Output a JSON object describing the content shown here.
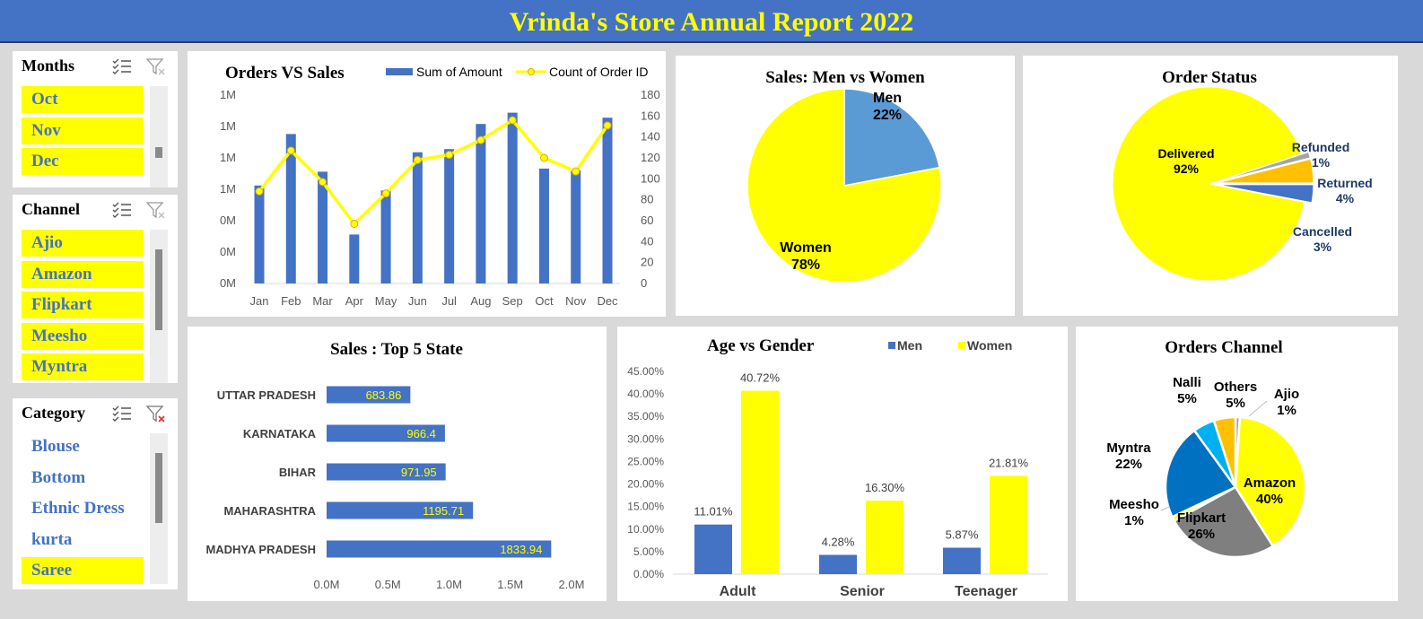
{
  "title": "Vrinda's Store Annual Report 2022",
  "slicers": {
    "months": {
      "header": "Months",
      "items": [
        {
          "label": "Oct",
          "selected": true
        },
        {
          "label": "Nov",
          "selected": true
        },
        {
          "label": "Dec",
          "selected": true
        }
      ]
    },
    "channel": {
      "header": "Channel",
      "items": [
        {
          "label": "Ajio",
          "selected": true
        },
        {
          "label": "Amazon",
          "selected": true
        },
        {
          "label": "Flipkart",
          "selected": true
        },
        {
          "label": "Meesho",
          "selected": true
        },
        {
          "label": "Myntra",
          "selected": true
        }
      ]
    },
    "category": {
      "header": "Category",
      "items": [
        {
          "label": "Blouse",
          "selected": false
        },
        {
          "label": "Bottom",
          "selected": false
        },
        {
          "label": "Ethnic Dress",
          "selected": false
        },
        {
          "label": "kurta",
          "selected": false
        },
        {
          "label": "Saree",
          "selected": true
        }
      ]
    }
  },
  "colors": {
    "banner": "#4472c4",
    "yellow": "#ffff00",
    "blue": "#4472c4",
    "lightblue": "#5b9bd5",
    "darkblue": "#0070c0",
    "sky": "#00b0f0",
    "orange": "#ffc000",
    "grey": "#7f7f7f",
    "lightgrey": "#a5a5a5"
  },
  "chart_data": [
    {
      "id": "orders_vs_sales",
      "type": "bar",
      "title": "Orders VS Sales",
      "categories": [
        "Jan",
        "Feb",
        "Mar",
        "Apr",
        "May",
        "Jun",
        "Jul",
        "Aug",
        "Sep",
        "Oct",
        "Nov",
        "Dec"
      ],
      "series": [
        {
          "name": "Sum of Amount",
          "type": "bar",
          "axis": "left",
          "values": [
            1.56,
            2.38,
            1.78,
            0.78,
            1.48,
            2.09,
            2.14,
            2.54,
            2.72,
            1.83,
            1.8,
            2.64
          ]
        },
        {
          "name": "Count of Order ID",
          "type": "line",
          "axis": "right",
          "values": [
            88,
            127,
            97,
            57,
            86,
            118,
            123,
            137,
            156,
            120,
            107,
            151
          ]
        }
      ],
      "left_ticks": [
        "0M",
        "0M",
        "0M",
        "1M",
        "1M",
        "1M",
        "1M"
      ],
      "left_ylim": [
        0,
        3.0
      ],
      "right_ticks": [
        "0",
        "20",
        "40",
        "60",
        "80",
        "100",
        "120",
        "140",
        "160",
        "180"
      ],
      "right_ylim": [
        0,
        180
      ],
      "legend": "top"
    },
    {
      "id": "sales_men_women",
      "type": "pie",
      "title": "Sales: Men vs Women",
      "slices": [
        {
          "label": "Men",
          "value": 22,
          "display": "22%"
        },
        {
          "label": "Women",
          "value": 78,
          "display": "78%"
        }
      ]
    },
    {
      "id": "order_status",
      "type": "pie",
      "title": "Order Status",
      "slices": [
        {
          "label": "Refunded",
          "value": 1,
          "display": "1%"
        },
        {
          "label": "Returned",
          "value": 4,
          "display": "4%"
        },
        {
          "label": "Cancelled",
          "value": 3,
          "display": "3%"
        },
        {
          "label": "Delivered",
          "value": 92,
          "display": "92%"
        }
      ]
    },
    {
      "id": "top5_state",
      "type": "bar",
      "orientation": "horizontal",
      "title": "Sales : Top 5 State",
      "categories": [
        "UTTAR PRADESH",
        "KARNATAKA",
        "BIHAR",
        "MAHARASHTRA",
        "MADHYA PRADESH"
      ],
      "values": [
        0.68386,
        0.9664,
        0.97195,
        1.19571,
        1.83394
      ],
      "data_labels": [
        "683.86",
        "966.4",
        "971.95",
        "1195.71",
        "1833.94"
      ],
      "x_ticks": [
        "0.0M",
        "0.5M",
        "1.0M",
        "1.5M",
        "2.0M"
      ],
      "xlim": [
        0,
        2.0
      ]
    },
    {
      "id": "age_vs_gender",
      "type": "bar",
      "title": "Age vs Gender",
      "categories": [
        "Adult",
        "Senior",
        "Teenager"
      ],
      "series": [
        {
          "name": "Men",
          "values": [
            11.01,
            4.28,
            5.87
          ],
          "labels": [
            "11.01%",
            "4.28%",
            "5.87%"
          ]
        },
        {
          "name": "Women",
          "values": [
            40.72,
            16.3,
            21.81
          ],
          "labels": [
            "40.72%",
            "16.30%",
            "21.81%"
          ]
        }
      ],
      "y_ticks": [
        "0.00%",
        "5.00%",
        "10.00%",
        "15.00%",
        "20.00%",
        "25.00%",
        "30.00%",
        "35.00%",
        "40.00%",
        "45.00%"
      ],
      "ylim": [
        0,
        45
      ],
      "legend": "top-right"
    },
    {
      "id": "orders_channel",
      "type": "pie",
      "title": "Orders Channel",
      "slices": [
        {
          "label": "Ajio",
          "value": 1,
          "display": "1%"
        },
        {
          "label": "Amazon",
          "value": 40,
          "display": "40%"
        },
        {
          "label": "Flipkart",
          "value": 26,
          "display": "26%"
        },
        {
          "label": "Meesho",
          "value": 1,
          "display": "1%"
        },
        {
          "label": "Myntra",
          "value": 22,
          "display": "22%"
        },
        {
          "label": "Nalli",
          "value": 5,
          "display": "5%"
        },
        {
          "label": "Others",
          "value": 5,
          "display": "5%"
        }
      ]
    }
  ]
}
